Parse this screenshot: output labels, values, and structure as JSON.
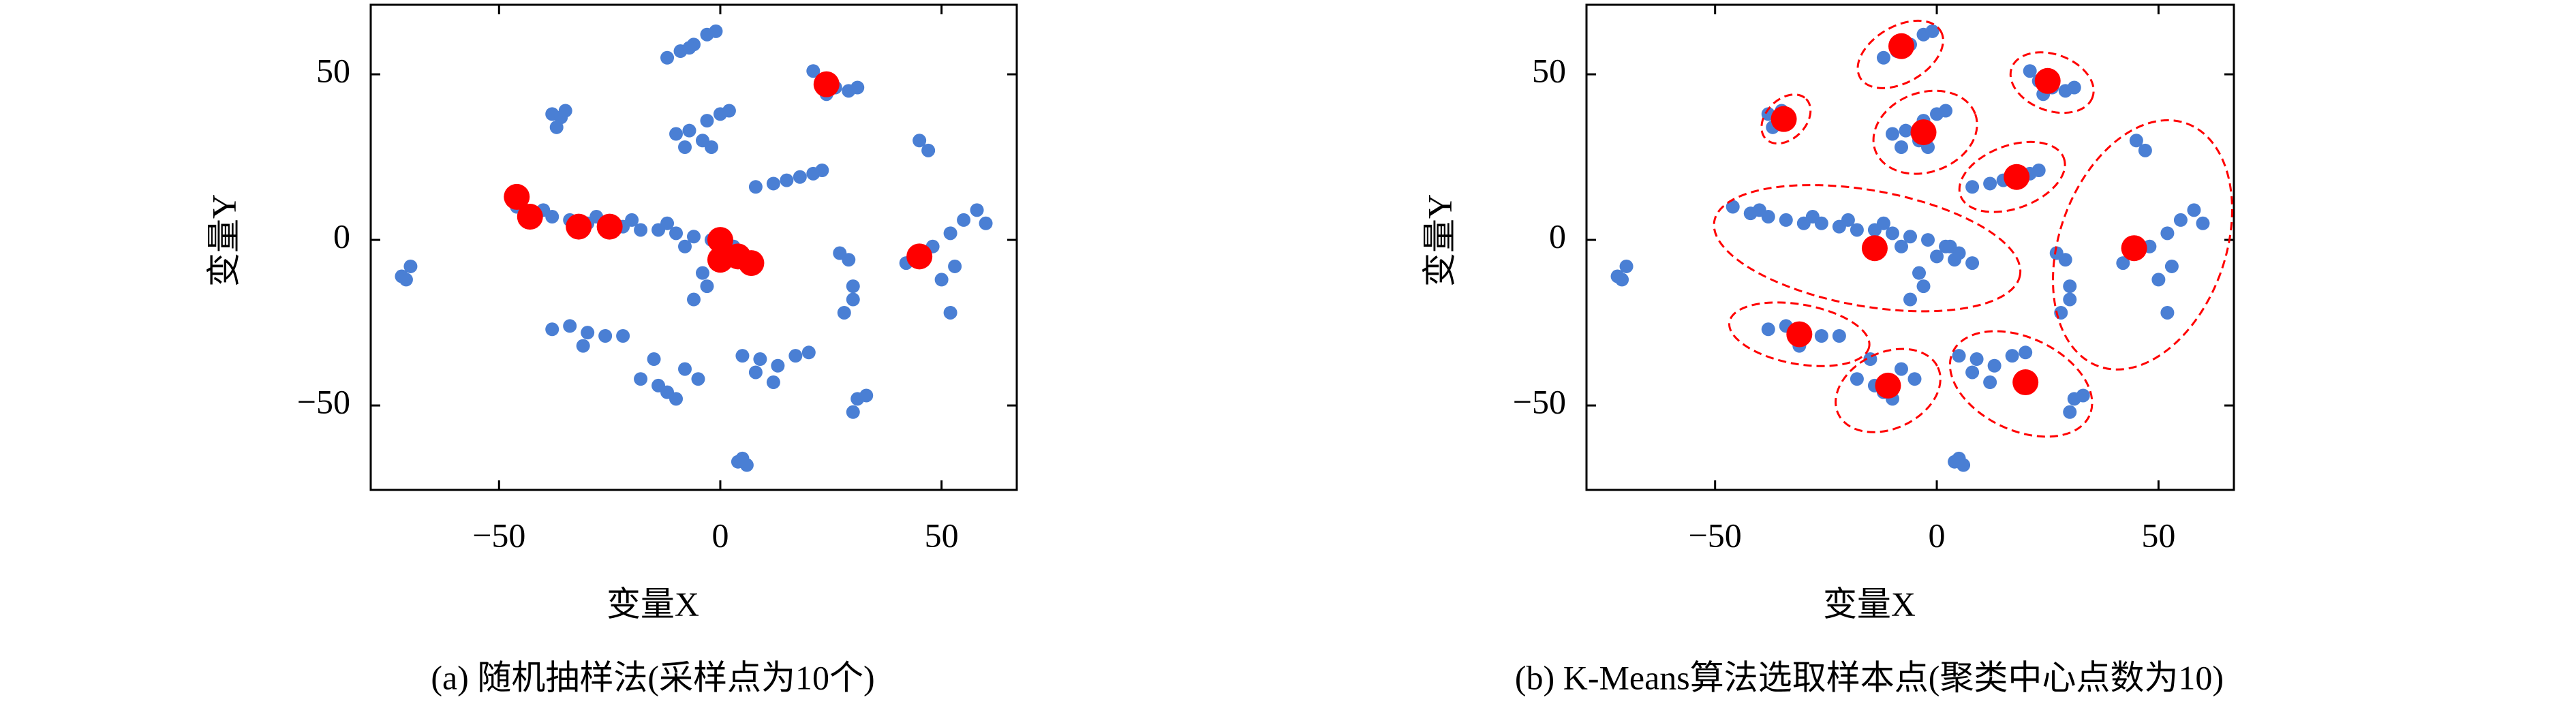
{
  "chart_data": [
    {
      "type": "scatter",
      "caption": "(a) 随机抽样法(采样点为10个)",
      "xlabel": "变量X",
      "ylabel": "变量Y",
      "xlim": [
        -79,
        67
      ],
      "ylim": [
        -75.5,
        71
      ],
      "xticks": [
        {
          "value": -50,
          "label": "−50"
        },
        0,
        50
      ],
      "yticks": [
        {
          "value": -50,
          "label": "−50"
        },
        0,
        50
      ],
      "series": [
        {
          "color": "#4a7fd4",
          "x": [
            -72,
            -70,
            -71,
            -38,
            -36,
            -37,
            -35,
            -12,
            -9,
            -6,
            -3,
            -1,
            -7,
            -10,
            -7,
            -4,
            -3,
            0,
            2,
            -8,
            -2,
            21,
            23,
            26,
            29,
            31,
            24,
            8,
            12,
            15,
            18,
            21,
            23,
            -46,
            -42,
            -38,
            -34,
            -30,
            -26,
            -22,
            -18,
            -14,
            -10,
            -6,
            -2,
            2,
            5,
            -40,
            -28,
            -20,
            -12,
            -8,
            -4,
            -6,
            -3,
            0,
            4,
            8,
            3,
            42,
            45,
            48,
            52,
            55,
            58,
            60,
            45,
            47,
            52,
            50,
            53,
            27,
            29,
            30,
            28,
            30,
            -38,
            -34,
            -30,
            -26,
            -31,
            -22,
            -18,
            -14,
            -12,
            -10,
            -8,
            -5,
            -15,
            5,
            9,
            13,
            17,
            20,
            8,
            12,
            31,
            33,
            30,
            4,
            6,
            5
          ],
          "y": [
            -11,
            -8,
            -12,
            38,
            37,
            34,
            39,
            55,
            57,
            59,
            62,
            63,
            58,
            32,
            33,
            30,
            36,
            38,
            39,
            28,
            28,
            51,
            48,
            46,
            45,
            46,
            44,
            16,
            17,
            18,
            19,
            20,
            21,
            10,
            8,
            7,
            6,
            5,
            5,
            4,
            3,
            3,
            2,
            1,
            0,
            -2,
            -4,
            9,
            7,
            6,
            5,
            -2,
            -10,
            -18,
            -14,
            -5,
            -6,
            -7,
            -2,
            -7,
            -4,
            -2,
            2,
            6,
            9,
            5,
            30,
            27,
            -22,
            -12,
            -8,
            -4,
            -6,
            -18,
            -22,
            -14,
            -27,
            -26,
            -28,
            -29,
            -32,
            -29,
            -42,
            -44,
            -46,
            -48,
            -39,
            -42,
            -36,
            -35,
            -36,
            -38,
            -35,
            -34,
            -40,
            -43,
            -48,
            -47,
            -52,
            -67,
            -68,
            -66
          ]
        },
        {
          "color": "#ff0000",
          "x": [
            -46,
            -43,
            -32,
            -25,
            0,
            0,
            4,
            7,
            45,
            24
          ],
          "y": [
            13,
            7,
            4,
            4,
            0,
            -6,
            -5,
            -7,
            -5,
            47
          ]
        }
      ]
    },
    {
      "type": "scatter",
      "caption": "(b) K-Means算法选取样本点(聚类中心点数为10)",
      "xlabel": "变量X",
      "ylabel": "变量Y",
      "xlim": [
        -79,
        67
      ],
      "ylim": [
        -75.5,
        71
      ],
      "xticks": [
        {
          "value": -50,
          "label": "−50"
        },
        0,
        50
      ],
      "yticks": [
        {
          "value": -50,
          "label": "−50"
        },
        0,
        50
      ],
      "series": [
        {
          "color": "#4a7fd4",
          "x": [
            -72,
            -70,
            -71,
            -38,
            -36,
            -37,
            -35,
            -12,
            -9,
            -6,
            -3,
            -1,
            -7,
            -10,
            -7,
            -4,
            -3,
            0,
            2,
            -8,
            -2,
            21,
            23,
            26,
            29,
            31,
            24,
            8,
            12,
            15,
            18,
            21,
            23,
            -46,
            -42,
            -38,
            -34,
            -30,
            -26,
            -22,
            -18,
            -14,
            -10,
            -6,
            -2,
            2,
            5,
            -40,
            -28,
            -20,
            -12,
            -8,
            -4,
            -6,
            -3,
            0,
            4,
            8,
            3,
            42,
            45,
            48,
            52,
            55,
            58,
            60,
            45,
            47,
            52,
            50,
            53,
            27,
            29,
            30,
            28,
            30,
            -38,
            -34,
            -30,
            -26,
            -31,
            -22,
            -18,
            -14,
            -12,
            -10,
            -8,
            -5,
            -15,
            5,
            9,
            13,
            17,
            20,
            8,
            12,
            31,
            33,
            30,
            4,
            6,
            5
          ],
          "y": [
            -11,
            -8,
            -12,
            38,
            37,
            34,
            39,
            55,
            57,
            59,
            62,
            63,
            58,
            32,
            33,
            30,
            36,
            38,
            39,
            28,
            28,
            51,
            48,
            46,
            45,
            46,
            44,
            16,
            17,
            18,
            19,
            20,
            21,
            10,
            8,
            7,
            6,
            5,
            5,
            4,
            3,
            3,
            2,
            1,
            0,
            -2,
            -4,
            9,
            7,
            6,
            5,
            -2,
            -10,
            -18,
            -14,
            -5,
            -6,
            -7,
            -2,
            -7,
            -4,
            -2,
            2,
            6,
            9,
            5,
            30,
            27,
            -22,
            -12,
            -8,
            -4,
            -6,
            -18,
            -22,
            -14,
            -27,
            -26,
            -28,
            -29,
            -32,
            -29,
            -42,
            -44,
            -46,
            -48,
            -39,
            -42,
            -36,
            -35,
            -36,
            -38,
            -35,
            -34,
            -40,
            -43,
            -48,
            -47,
            -52,
            -67,
            -68,
            -66
          ]
        },
        {
          "color": "#ff0000",
          "x": [
            -8,
            -34.5,
            -3,
            25,
            18,
            -14,
            44.5,
            -31,
            -11,
            20
          ],
          "y": [
            58.5,
            36.5,
            32.5,
            48,
            19,
            -2.5,
            -2.5,
            -28.5,
            -44,
            -43
          ]
        }
      ],
      "ellipses": {
        "color": "#ff0000",
        "cx": [
          -8.2,
          -34,
          -2.6,
          26,
          17,
          -15.7,
          46.4,
          -31,
          -11,
          19
        ],
        "cy": [
          56,
          36.5,
          32.5,
          47.5,
          19,
          -2.5,
          -1.5,
          -28.5,
          -45.5,
          -43.5
        ],
        "rx": [
          10.5,
          6.4,
          12,
          9.7,
          12.4,
          35,
          18.7,
          16,
          12.4,
          17
        ],
        "ry": [
          8.5,
          6,
          12,
          8.5,
          9.5,
          17.5,
          39,
          9,
          11.5,
          14
        ],
        "rotation": [
          -30,
          -45,
          -20,
          20,
          -20,
          10,
          20,
          10,
          -25,
          25
        ]
      }
    }
  ]
}
